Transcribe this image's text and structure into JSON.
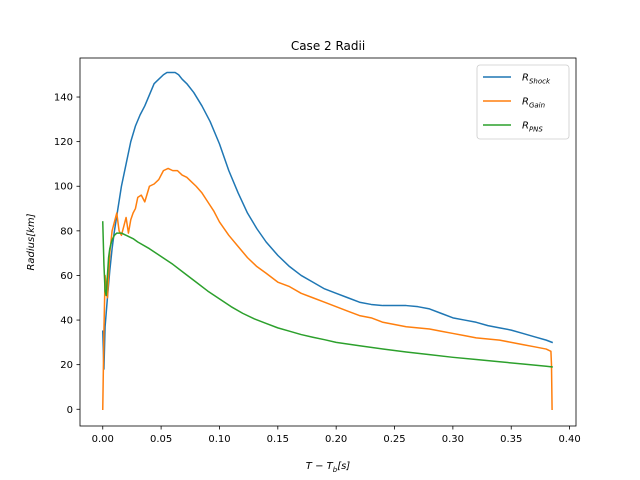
{
  "chart_data": {
    "type": "line",
    "title": "Case 2 Radii",
    "xlabel": {
      "main": "T − T",
      "sub": "b",
      "tail": "[s]"
    },
    "ylabel": "Radius[km]",
    "xlim": [
      -0.0195,
      0.4055
    ],
    "ylim": [
      -7.5,
      157.5
    ],
    "xticks": [
      0.0,
      0.05,
      0.1,
      0.15,
      0.2,
      0.25,
      0.3,
      0.35,
      0.4
    ],
    "xtick_labels": [
      "0.00",
      "0.05",
      "0.10",
      "0.15",
      "0.20",
      "0.25",
      "0.30",
      "0.35",
      "0.40"
    ],
    "yticks": [
      0,
      20,
      40,
      60,
      80,
      100,
      120,
      140
    ],
    "ytick_labels": [
      "0",
      "20",
      "40",
      "60",
      "80",
      "100",
      "120",
      "140"
    ],
    "grid": false,
    "legend_position": "top-right",
    "series": [
      {
        "name": "R",
        "name_sub": "Shock",
        "color": "#1f77b4",
        "x": [
          0.0,
          0.001,
          0.002,
          0.004,
          0.006,
          0.008,
          0.01,
          0.013,
          0.016,
          0.02,
          0.024,
          0.028,
          0.032,
          0.036,
          0.04,
          0.044,
          0.048,
          0.052,
          0.055,
          0.058,
          0.062,
          0.065,
          0.068,
          0.072,
          0.078,
          0.085,
          0.092,
          0.1,
          0.108,
          0.116,
          0.124,
          0.132,
          0.14,
          0.15,
          0.16,
          0.17,
          0.18,
          0.19,
          0.2,
          0.21,
          0.22,
          0.23,
          0.24,
          0.25,
          0.26,
          0.27,
          0.28,
          0.29,
          0.3,
          0.31,
          0.32,
          0.33,
          0.34,
          0.35,
          0.36,
          0.37,
          0.38,
          0.385
        ],
        "y": [
          35,
          18,
          37,
          50,
          62,
          72,
          80,
          90,
          100,
          110,
          120,
          127,
          132,
          136,
          141,
          146,
          148,
          150,
          151,
          151,
          151,
          150,
          148,
          146,
          142,
          136,
          129,
          119,
          107,
          97,
          88,
          81,
          75,
          69,
          64,
          60,
          57,
          54,
          52,
          50,
          48,
          47,
          46.5,
          46.5,
          46.5,
          46,
          45,
          43,
          41,
          40,
          39,
          37.5,
          36.5,
          35.5,
          34,
          32.5,
          31,
          30
        ]
      },
      {
        "name": "R",
        "name_sub": "Gain",
        "color": "#ff7f0e",
        "x": [
          0.0,
          0.001,
          0.002,
          0.004,
          0.006,
          0.008,
          0.01,
          0.012,
          0.014,
          0.016,
          0.018,
          0.02,
          0.022,
          0.024,
          0.026,
          0.028,
          0.03,
          0.033,
          0.036,
          0.04,
          0.044,
          0.048,
          0.052,
          0.056,
          0.06,
          0.064,
          0.068,
          0.072,
          0.076,
          0.08,
          0.085,
          0.09,
          0.095,
          0.1,
          0.108,
          0.116,
          0.124,
          0.132,
          0.14,
          0.15,
          0.16,
          0.17,
          0.18,
          0.19,
          0.2,
          0.21,
          0.22,
          0.23,
          0.24,
          0.25,
          0.26,
          0.27,
          0.28,
          0.29,
          0.3,
          0.31,
          0.32,
          0.33,
          0.34,
          0.35,
          0.36,
          0.37,
          0.38,
          0.384,
          0.3845,
          0.385
        ],
        "y": [
          0,
          35,
          60,
          50,
          70,
          80,
          84,
          88,
          80,
          78,
          82,
          86,
          79,
          85,
          88,
          90,
          95,
          96,
          93,
          100,
          101,
          103,
          107,
          108,
          107,
          107,
          105,
          104,
          102,
          100,
          97,
          93,
          89,
          84,
          78,
          73,
          68,
          64,
          61,
          57,
          55,
          52,
          50,
          48,
          46,
          44,
          42,
          41,
          39,
          38,
          37,
          36.5,
          36,
          35,
          34,
          33,
          32,
          31.5,
          31,
          30,
          29,
          28,
          27,
          26,
          20,
          0
        ]
      },
      {
        "name": "R",
        "name_sub": "PNS",
        "color": "#2ca02c",
        "x": [
          0.0,
          0.001,
          0.002,
          0.003,
          0.004,
          0.005,
          0.006,
          0.008,
          0.01,
          0.012,
          0.014,
          0.016,
          0.018,
          0.02,
          0.022,
          0.026,
          0.03,
          0.04,
          0.05,
          0.06,
          0.07,
          0.08,
          0.09,
          0.1,
          0.11,
          0.12,
          0.13,
          0.14,
          0.15,
          0.16,
          0.17,
          0.18,
          0.19,
          0.2,
          0.22,
          0.24,
          0.26,
          0.28,
          0.3,
          0.32,
          0.34,
          0.36,
          0.38,
          0.385
        ],
        "y": [
          84,
          65,
          53,
          51,
          60,
          68,
          72,
          76,
          78,
          79,
          79,
          79,
          78.5,
          78,
          77.5,
          76.5,
          75,
          72,
          68.5,
          65,
          61,
          57,
          53,
          49.5,
          46,
          43,
          40.5,
          38.5,
          36.5,
          35,
          33.5,
          32.3,
          31.2,
          30,
          28.5,
          27,
          25.7,
          24.5,
          23.3,
          22.3,
          21.3,
          20.3,
          19.3,
          19
        ]
      }
    ]
  }
}
